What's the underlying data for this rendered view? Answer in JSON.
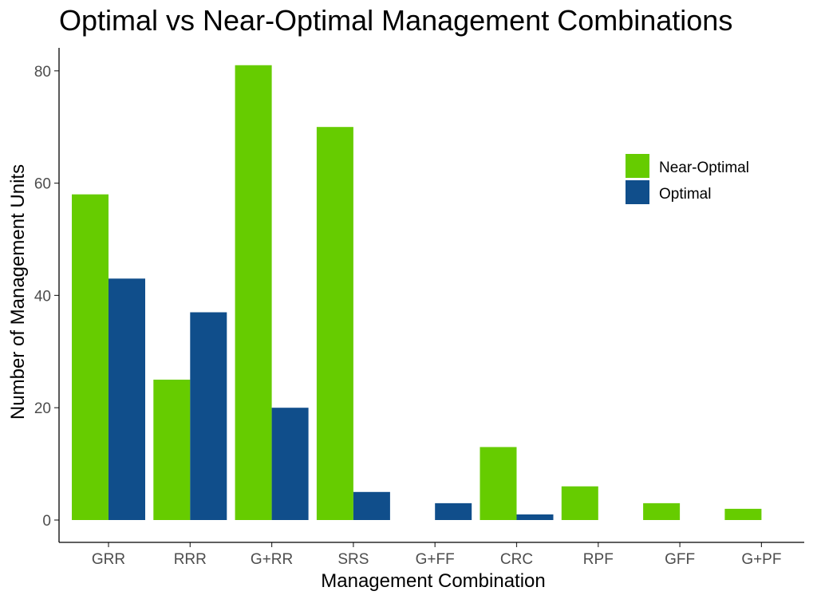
{
  "chart_data": {
    "type": "bar",
    "title": "Optimal vs Near-Optimal Management Combinations",
    "xlabel": "Management Combination",
    "ylabel": "Number of Management Units",
    "ylim": [
      0,
      85
    ],
    "yticks": [
      0,
      20,
      40,
      60,
      80
    ],
    "grid": false,
    "legend_position": "right",
    "categories": [
      "GRR",
      "RRR",
      "G+RR",
      "SRS",
      "G+FF",
      "CRC",
      "RPF",
      "GFF",
      "G+PF"
    ],
    "series": [
      {
        "name": "Near-Optimal",
        "color": "#66cc00",
        "values": [
          58,
          25,
          81,
          70,
          0,
          13,
          6,
          3,
          2
        ]
      },
      {
        "name": "Optimal",
        "color": "#104e8b",
        "values": [
          43,
          37,
          20,
          5,
          3,
          1,
          0,
          0,
          0
        ]
      }
    ]
  }
}
